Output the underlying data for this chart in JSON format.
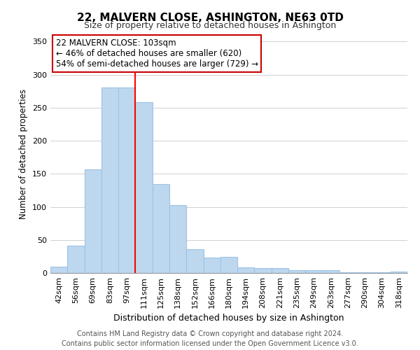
{
  "title": "22, MALVERN CLOSE, ASHINGTON, NE63 0TD",
  "subtitle": "Size of property relative to detached houses in Ashington",
  "xlabel": "Distribution of detached houses by size in Ashington",
  "ylabel": "Number of detached properties",
  "bar_labels": [
    "42sqm",
    "56sqm",
    "69sqm",
    "83sqm",
    "97sqm",
    "111sqm",
    "125sqm",
    "138sqm",
    "152sqm",
    "166sqm",
    "180sqm",
    "194sqm",
    "208sqm",
    "221sqm",
    "235sqm",
    "249sqm",
    "263sqm",
    "277sqm",
    "290sqm",
    "304sqm",
    "318sqm"
  ],
  "bar_values": [
    10,
    41,
    157,
    281,
    281,
    258,
    134,
    103,
    36,
    23,
    24,
    8,
    7,
    7,
    4,
    4,
    4,
    1,
    1,
    1,
    2
  ],
  "bar_color": "#bdd7ee",
  "bar_edge_color": "#9dc3e6",
  "ref_line_x": 4.5,
  "annotation_title": "22 MALVERN CLOSE: 103sqm",
  "annotation_line1": "← 46% of detached houses are smaller (620)",
  "annotation_line2": "54% of semi-detached houses are larger (729) →",
  "annotation_box_color": "#ffffff",
  "annotation_box_edge_color": "#cc0000",
  "ylim": [
    0,
    360
  ],
  "yticks": [
    0,
    50,
    100,
    150,
    200,
    250,
    300,
    350
  ],
  "footer1": "Contains HM Land Registry data © Crown copyright and database right 2024.",
  "footer2": "Contains public sector information licensed under the Open Government Licence v3.0.",
  "bg_color": "#ffffff",
  "grid_color": "#d0d0d0",
  "title_fontsize": 11,
  "subtitle_fontsize": 9,
  "ylabel_fontsize": 8.5,
  "xlabel_fontsize": 9,
  "tick_fontsize": 8,
  "annotation_fontsize": 8.5,
  "footer_fontsize": 7
}
